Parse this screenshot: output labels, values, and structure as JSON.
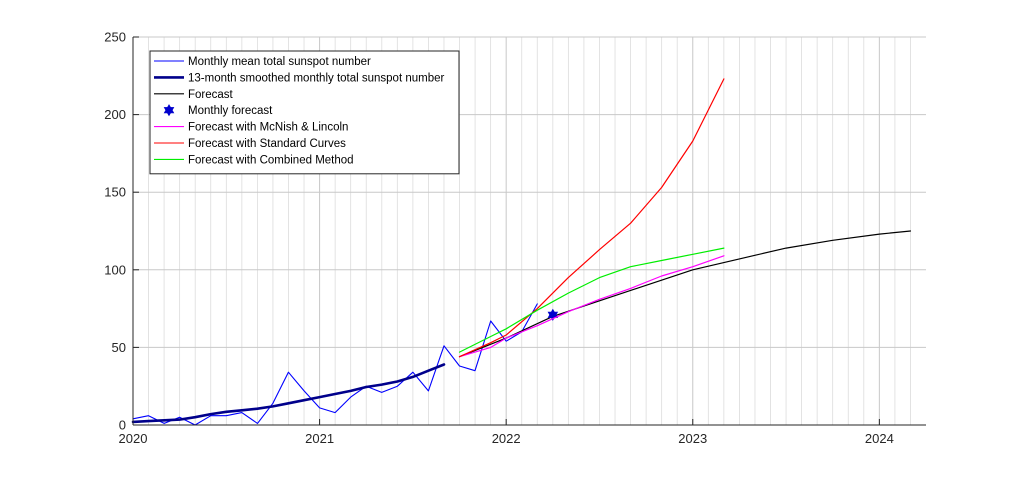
{
  "chart_data": {
    "type": "line",
    "xlim": [
      2020.0,
      2024.25
    ],
    "ylim": [
      0,
      250
    ],
    "grid": true,
    "minor_grid_x": "monthly",
    "legend_position": "top-left",
    "xticks": [
      {
        "value": 2020,
        "label": "2020"
      },
      {
        "value": 2021,
        "label": "2021"
      },
      {
        "value": 2022,
        "label": "2022"
      },
      {
        "value": 2023,
        "label": "2023"
      },
      {
        "value": 2024,
        "label": "2024"
      }
    ],
    "yticks": [
      {
        "value": 0,
        "label": "0"
      },
      {
        "value": 50,
        "label": "50"
      },
      {
        "value": 100,
        "label": "100"
      },
      {
        "value": 150,
        "label": "150"
      },
      {
        "value": 200,
        "label": "200"
      },
      {
        "value": 250,
        "label": "250"
      }
    ],
    "series": [
      {
        "name": "Monthly mean total sunspot number",
        "color": "#0000ff",
        "style": "thin-line",
        "x": [
          2020.0,
          2020.083,
          2020.167,
          2020.25,
          2020.333,
          2020.417,
          2020.5,
          2020.583,
          2020.667,
          2020.75,
          2020.833,
          2020.917,
          2021.0,
          2021.083,
          2021.167,
          2021.25,
          2021.333,
          2021.417,
          2021.5,
          2021.583,
          2021.667,
          2021.75,
          2021.833,
          2021.917,
          2022.0,
          2022.083,
          2022.167
        ],
        "y": [
          4,
          6,
          1,
          5,
          0,
          6,
          6,
          8,
          1,
          14,
          34,
          22,
          11,
          8,
          18,
          25,
          21,
          25,
          34,
          22,
          51,
          38,
          35,
          67,
          54,
          60,
          78
        ]
      },
      {
        "name": "13-month smoothed monthly total sunspot number",
        "color": "#00008b",
        "style": "thick-line",
        "x": [
          2020.0,
          2020.083,
          2020.167,
          2020.25,
          2020.333,
          2020.417,
          2020.5,
          2020.583,
          2020.667,
          2020.75,
          2020.833,
          2020.917,
          2021.0,
          2021.083,
          2021.167,
          2021.25,
          2021.333,
          2021.417,
          2021.5,
          2021.583,
          2021.667
        ],
        "y": [
          2,
          2.5,
          3,
          3.5,
          5,
          7,
          8.5,
          9.5,
          10.5,
          12,
          14,
          16,
          18,
          20,
          22,
          24.5,
          26,
          28,
          31,
          35,
          39
        ]
      },
      {
        "name": "Forecast",
        "color": "#000000",
        "style": "line",
        "x": [
          2021.75,
          2022.0,
          2022.25,
          2022.5,
          2022.75,
          2023.0,
          2023.25,
          2023.5,
          2023.75,
          2024.0,
          2024.167
        ],
        "y": [
          44,
          56,
          70,
          80,
          90,
          100,
          107,
          114,
          119,
          123,
          125
        ]
      },
      {
        "name": "Monthly forecast",
        "color": "#0000cd",
        "style": "marker-hexagram",
        "x": [
          2022.25
        ],
        "y": [
          71
        ]
      },
      {
        "name": "Forecast with McNish & Lincoln",
        "color": "#ff00ff",
        "style": "line",
        "x": [
          2021.75,
          2021.917,
          2022.0,
          2022.167,
          2022.333,
          2022.5,
          2022.667,
          2022.833,
          2023.0,
          2023.167
        ],
        "y": [
          44,
          50,
          56,
          64,
          73,
          81,
          88,
          96,
          102,
          109
        ]
      },
      {
        "name": "Forecast with Standard Curves",
        "color": "#ff0000",
        "style": "line",
        "x": [
          2021.75,
          2021.917,
          2022.0,
          2022.167,
          2022.333,
          2022.5,
          2022.667,
          2022.833,
          2023.0,
          2023.167
        ],
        "y": [
          44,
          53,
          58,
          75,
          95,
          113,
          130,
          153,
          183,
          223
        ]
      },
      {
        "name": "Forecast with Combined Method",
        "color": "#00ee00",
        "style": "line",
        "x": [
          2021.75,
          2021.917,
          2022.0,
          2022.167,
          2022.333,
          2022.5,
          2022.667,
          2022.833,
          2023.0,
          2023.167
        ],
        "y": [
          47,
          57,
          62,
          74,
          85,
          95,
          102,
          106,
          110,
          114
        ]
      }
    ]
  }
}
